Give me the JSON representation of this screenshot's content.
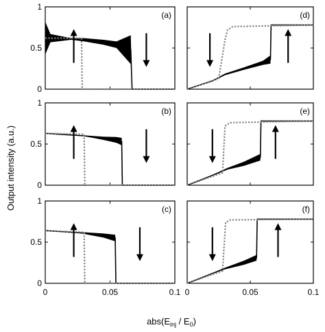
{
  "figure": {
    "ylabel": "Output intensity (a.u.)",
    "xlabel": "abs(E_inj / E_0)"
  },
  "chart_data": [
    {
      "type": "line",
      "label": "(a)",
      "xlim": [
        0,
        0.1
      ],
      "ylim": [
        0,
        1
      ],
      "xticks": [],
      "yticks": [
        "0",
        "0.5",
        "1"
      ],
      "series": [
        {
          "color": "#000000",
          "style": "solid",
          "band": true,
          "x": [
            0,
            0.004,
            0.02,
            0.03,
            0.045,
            0.055,
            0.066,
            0.067,
            0.068,
            0.1
          ],
          "y": [
            0.62,
            0.62,
            0.61,
            0.6,
            0.57,
            0.54,
            0.48,
            0.0,
            0.0,
            0.0
          ],
          "spread": [
            0.4,
            0.1,
            0.02,
            0.04,
            0.06,
            0.08,
            0.35,
            0,
            0,
            0
          ]
        },
        {
          "color": "#808080",
          "style": "dotted",
          "x": [
            0,
            0.028,
            0.0285,
            0.1
          ],
          "y": [
            0.62,
            0.62,
            0.0,
            0.0
          ]
        }
      ],
      "arrows": [
        {
          "x": 0.022,
          "dir": "up"
        },
        {
          "x": 0.078,
          "dir": "down"
        }
      ]
    },
    {
      "type": "line",
      "label": "(d)",
      "xlim": [
        0,
        0.1
      ],
      "ylim": [
        0,
        1
      ],
      "xticks": [],
      "yticks": [],
      "series": [
        {
          "color": "#000000",
          "style": "solid",
          "band": true,
          "x": [
            0.0,
            0.02,
            0.03,
            0.045,
            0.06,
            0.066,
            0.0665,
            0.1
          ],
          "y": [
            0.0,
            0.1,
            0.18,
            0.25,
            0.32,
            0.36,
            0.78,
            0.78
          ],
          "spread": [
            0,
            0.01,
            0.02,
            0.03,
            0.05,
            0.1,
            0.0,
            0.0
          ]
        },
        {
          "color": "#808080",
          "style": "dotted",
          "x": [
            0.0,
            0.025,
            0.03,
            0.032,
            0.036,
            0.1
          ],
          "y": [
            0.0,
            0.13,
            0.6,
            0.72,
            0.76,
            0.78
          ]
        }
      ],
      "arrows": [
        {
          "x": 0.018,
          "dir": "down"
        },
        {
          "x": 0.08,
          "dir": "up"
        }
      ]
    },
    {
      "type": "line",
      "label": "(b)",
      "xlim": [
        0,
        0.1
      ],
      "ylim": [
        0,
        1
      ],
      "xticks": [],
      "yticks": [
        "0",
        "0.5",
        "1"
      ],
      "series": [
        {
          "color": "#000000",
          "style": "solid",
          "band": true,
          "x": [
            0,
            0.02,
            0.03,
            0.045,
            0.055,
            0.059,
            0.0595,
            0.1
          ],
          "y": [
            0.63,
            0.61,
            0.6,
            0.57,
            0.55,
            0.53,
            0.0,
            0.0
          ],
          "spread": [
            0,
            0,
            0.01,
            0.04,
            0.07,
            0.09,
            0,
            0
          ]
        },
        {
          "color": "#808080",
          "style": "dotted",
          "x": [
            0,
            0.03,
            0.0305,
            0.1
          ],
          "y": [
            0.63,
            0.62,
            0.0,
            0.0
          ]
        }
      ],
      "arrows": [
        {
          "x": 0.022,
          "dir": "up"
        },
        {
          "x": 0.078,
          "dir": "down"
        }
      ]
    },
    {
      "type": "line",
      "label": "(e)",
      "xlim": [
        0,
        0.1
      ],
      "ylim": [
        0,
        1
      ],
      "xticks": [],
      "yticks": [],
      "series": [
        {
          "color": "#000000",
          "style": "solid",
          "band": true,
          "x": [
            0.0,
            0.02,
            0.032,
            0.045,
            0.058,
            0.0585,
            0.1
          ],
          "y": [
            0.0,
            0.12,
            0.2,
            0.26,
            0.34,
            0.78,
            0.78
          ],
          "spread": [
            0,
            0.01,
            0.02,
            0.05,
            0.08,
            0,
            0
          ]
        },
        {
          "color": "#808080",
          "style": "dotted",
          "x": [
            0.0,
            0.028,
            0.03,
            0.034,
            0.1
          ],
          "y": [
            0.0,
            0.15,
            0.72,
            0.76,
            0.78
          ]
        }
      ],
      "arrows": [
        {
          "x": 0.02,
          "dir": "down"
        },
        {
          "x": 0.07,
          "dir": "up"
        }
      ]
    },
    {
      "type": "line",
      "label": "(c)",
      "xlim": [
        0,
        0.1
      ],
      "ylim": [
        0,
        1
      ],
      "xticks": [
        "0",
        "0.05",
        "0.1"
      ],
      "yticks": [
        "0",
        "0.5",
        "1"
      ],
      "series": [
        {
          "color": "#000000",
          "style": "solid",
          "band": true,
          "x": [
            0,
            0.02,
            0.03,
            0.045,
            0.054,
            0.0545,
            0.1
          ],
          "y": [
            0.64,
            0.62,
            0.61,
            0.58,
            0.55,
            0.0,
            0.0
          ],
          "spread": [
            0,
            0,
            0.02,
            0.05,
            0.08,
            0,
            0
          ]
        },
        {
          "color": "#808080",
          "style": "dotted",
          "x": [
            0,
            0.03,
            0.0305,
            0.1
          ],
          "y": [
            0.64,
            0.62,
            0.0,
            0.0
          ]
        }
      ],
      "arrows": [
        {
          "x": 0.022,
          "dir": "up"
        },
        {
          "x": 0.073,
          "dir": "down"
        }
      ]
    },
    {
      "type": "line",
      "label": "(f)",
      "xlim": [
        0,
        0.1
      ],
      "ylim": [
        0,
        1
      ],
      "xticks": [
        "0",
        "0.05",
        "0.1"
      ],
      "yticks": [],
      "series": [
        {
          "color": "#000000",
          "style": "solid",
          "band": true,
          "x": [
            0.0,
            0.02,
            0.03,
            0.045,
            0.055,
            0.0555,
            0.1
          ],
          "y": [
            0.0,
            0.12,
            0.18,
            0.25,
            0.31,
            0.78,
            0.78
          ],
          "spread": [
            0,
            0.01,
            0.02,
            0.05,
            0.07,
            0,
            0
          ]
        },
        {
          "color": "#808080",
          "style": "dotted",
          "x": [
            0.0,
            0.028,
            0.0305,
            0.034,
            0.1
          ],
          "y": [
            0.0,
            0.15,
            0.74,
            0.77,
            0.78
          ]
        }
      ],
      "arrows": [
        {
          "x": 0.02,
          "dir": "down"
        },
        {
          "x": 0.072,
          "dir": "up"
        }
      ]
    }
  ]
}
